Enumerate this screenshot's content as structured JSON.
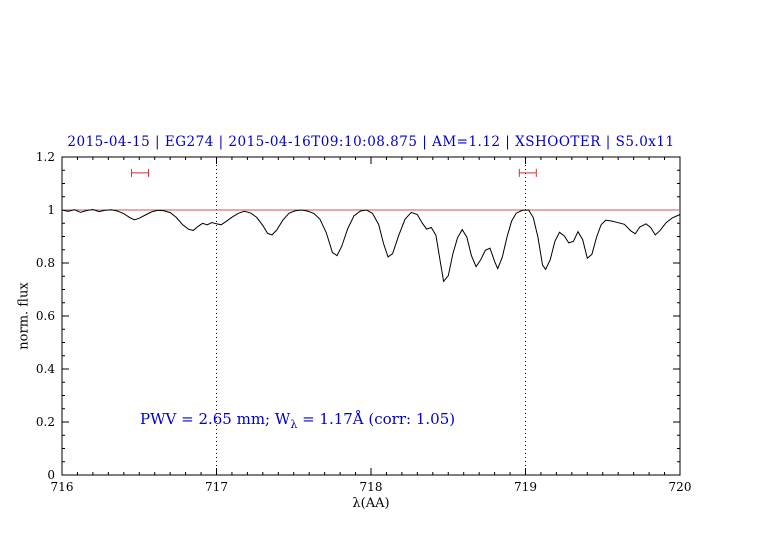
{
  "colors": {
    "text_accent": "#0000cc",
    "continuum": "#cc5555",
    "marker": "#cc3333",
    "spectrum": "#000000",
    "axis": "#000000"
  },
  "annotation": {
    "prefix": "PWV = 2.65 mm; W",
    "subscript": "λ",
    "suffix": " = 1.17Å (corr: 1.05)"
  },
  "chart_data": {
    "type": "line",
    "title": "2015-04-15 | EG274 | 2015-04-16T09:10:08.875 | AM=1.12 | XSHOOTER | S5.0x11",
    "xlabel": "λ(AA)",
    "ylabel": "norm. flux",
    "xlim": [
      716,
      720
    ],
    "ylim": [
      0,
      1.2
    ],
    "x_ticks": [
      716,
      717,
      718,
      719,
      720
    ],
    "x_tick_labels": [
      "716",
      "717",
      "718",
      "719",
      "720"
    ],
    "y_ticks": [
      0,
      0.2,
      0.4,
      0.6,
      0.8,
      1,
      1.2
    ],
    "y_tick_labels": [
      "0",
      "0.2",
      "0.4",
      "0.6",
      "0.8",
      "1",
      "1.2"
    ],
    "grid": false,
    "vlines": [
      717,
      719
    ],
    "vlines_style": "dotted",
    "continuum_y": 1.0,
    "markers": [
      {
        "x1": 716.45,
        "x2": 716.56,
        "y": 1.14
      },
      {
        "x1": 718.96,
        "x2": 719.07,
        "y": 1.14
      }
    ],
    "series": [
      {
        "name": "spectrum",
        "points": [
          [
            716.0,
            1.0
          ],
          [
            716.04,
            0.995
          ],
          [
            716.08,
            1.001
          ],
          [
            716.12,
            0.991
          ],
          [
            716.16,
            0.998
          ],
          [
            716.2,
            1.002
          ],
          [
            716.24,
            0.994
          ],
          [
            716.28,
            0.999
          ],
          [
            716.32,
            1.001
          ],
          [
            716.36,
            0.996
          ],
          [
            716.4,
            0.986
          ],
          [
            716.44,
            0.971
          ],
          [
            716.47,
            0.963
          ],
          [
            716.5,
            0.969
          ],
          [
            716.54,
            0.981
          ],
          [
            716.58,
            0.993
          ],
          [
            716.62,
            0.999
          ],
          [
            716.66,
            0.997
          ],
          [
            716.7,
            0.99
          ],
          [
            716.74,
            0.972
          ],
          [
            716.78,
            0.945
          ],
          [
            716.82,
            0.927
          ],
          [
            716.85,
            0.923
          ],
          [
            716.88,
            0.938
          ],
          [
            716.91,
            0.95
          ],
          [
            716.94,
            0.944
          ],
          [
            716.97,
            0.953
          ],
          [
            717.0,
            0.948
          ],
          [
            717.03,
            0.944
          ],
          [
            717.06,
            0.956
          ],
          [
            717.1,
            0.973
          ],
          [
            717.14,
            0.987
          ],
          [
            717.18,
            0.995
          ],
          [
            717.22,
            0.989
          ],
          [
            717.26,
            0.972
          ],
          [
            717.3,
            0.942
          ],
          [
            717.33,
            0.912
          ],
          [
            717.36,
            0.906
          ],
          [
            717.39,
            0.925
          ],
          [
            717.43,
            0.962
          ],
          [
            717.47,
            0.988
          ],
          [
            717.51,
            0.997
          ],
          [
            717.55,
            1.0
          ],
          [
            717.59,
            0.996
          ],
          [
            717.63,
            0.987
          ],
          [
            717.67,
            0.965
          ],
          [
            717.71,
            0.915
          ],
          [
            717.75,
            0.84
          ],
          [
            717.78,
            0.828
          ],
          [
            717.81,
            0.862
          ],
          [
            717.85,
            0.93
          ],
          [
            717.89,
            0.978
          ],
          [
            717.93,
            0.996
          ],
          [
            717.97,
            1.0
          ],
          [
            718.01,
            0.987
          ],
          [
            718.05,
            0.945
          ],
          [
            718.08,
            0.875
          ],
          [
            718.11,
            0.823
          ],
          [
            718.14,
            0.835
          ],
          [
            718.18,
            0.905
          ],
          [
            718.22,
            0.965
          ],
          [
            718.26,
            0.991
          ],
          [
            718.3,
            0.983
          ],
          [
            718.33,
            0.952
          ],
          [
            718.36,
            0.928
          ],
          [
            718.39,
            0.934
          ],
          [
            718.42,
            0.905
          ],
          [
            718.45,
            0.8
          ],
          [
            718.47,
            0.731
          ],
          [
            718.5,
            0.752
          ],
          [
            718.53,
            0.835
          ],
          [
            718.56,
            0.895
          ],
          [
            718.59,
            0.926
          ],
          [
            718.62,
            0.898
          ],
          [
            718.65,
            0.828
          ],
          [
            718.68,
            0.786
          ],
          [
            718.71,
            0.812
          ],
          [
            718.74,
            0.848
          ],
          [
            718.77,
            0.856
          ],
          [
            718.8,
            0.806
          ],
          [
            718.82,
            0.779
          ],
          [
            718.85,
            0.822
          ],
          [
            718.88,
            0.898
          ],
          [
            718.91,
            0.958
          ],
          [
            718.94,
            0.988
          ],
          [
            718.98,
            0.999
          ],
          [
            719.02,
            1.0
          ],
          [
            719.05,
            0.972
          ],
          [
            719.08,
            0.898
          ],
          [
            719.11,
            0.793
          ],
          [
            719.13,
            0.776
          ],
          [
            719.16,
            0.812
          ],
          [
            719.19,
            0.882
          ],
          [
            719.22,
            0.916
          ],
          [
            719.25,
            0.903
          ],
          [
            719.28,
            0.876
          ],
          [
            719.31,
            0.882
          ],
          [
            719.34,
            0.918
          ],
          [
            719.37,
            0.888
          ],
          [
            719.4,
            0.818
          ],
          [
            719.43,
            0.833
          ],
          [
            719.46,
            0.898
          ],
          [
            719.49,
            0.945
          ],
          [
            719.52,
            0.962
          ],
          [
            719.56,
            0.958
          ],
          [
            719.6,
            0.952
          ],
          [
            719.64,
            0.946
          ],
          [
            719.68,
            0.922
          ],
          [
            719.71,
            0.91
          ],
          [
            719.74,
            0.936
          ],
          [
            719.78,
            0.948
          ],
          [
            719.81,
            0.934
          ],
          [
            719.84,
            0.906
          ],
          [
            719.87,
            0.922
          ],
          [
            719.91,
            0.952
          ],
          [
            719.95,
            0.97
          ],
          [
            720.0,
            0.983
          ]
        ]
      }
    ]
  }
}
